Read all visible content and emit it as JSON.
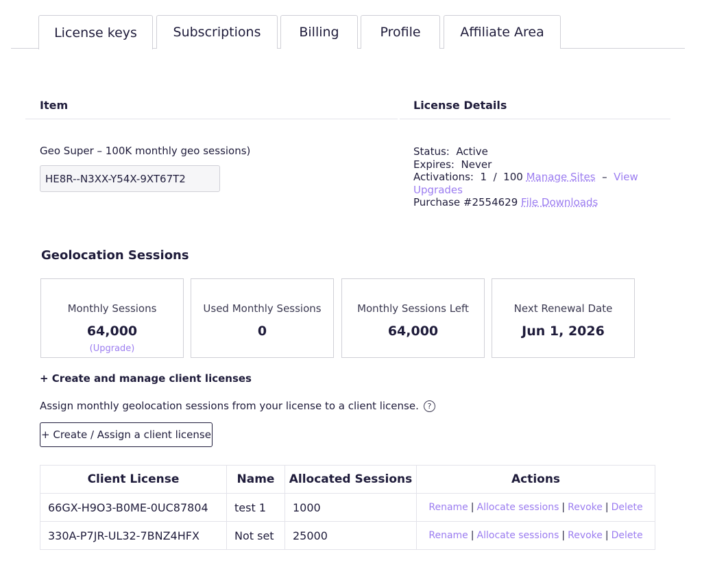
{
  "tabs": [
    "License keys",
    "Subscriptions",
    "Billing",
    "Profile",
    "Affiliate Area"
  ],
  "item": {
    "header": "Item",
    "product": "Geo Super – 100K monthly geo sessions)",
    "license_key": "HE8R--N3XX-Y54X-9XT67T2"
  },
  "details": {
    "header": "License Details",
    "status_label": "Status:",
    "status_value": "Active",
    "expires_label": "Expires:",
    "expires_value": "Never",
    "activations_label": "Activations:",
    "activations_value": "1  /  100",
    "manage_sites": "Manage Sites",
    "dash": "–",
    "view_upgrades": "View Upgrades",
    "purchase": "Purchase #2554629",
    "file_downloads": "File Downloads"
  },
  "sessions": {
    "title": "Geolocation Sessions",
    "cards": [
      {
        "label": "Monthly Sessions",
        "value": "64,000",
        "upgrade": "(Upgrade)"
      },
      {
        "label": "Used Monthly Sessions",
        "value": "0"
      },
      {
        "label": "Monthly Sessions Left",
        "value": "64,000"
      },
      {
        "label": "Next Renewal Date",
        "value": "Jun 1, 2026"
      }
    ]
  },
  "client": {
    "header": "+ Create and manage client licenses",
    "assign_text": "Assign monthly geolocation sessions from your license to a client license.",
    "help_icon": "?",
    "create_button": "+ Create / Assign a client license",
    "columns": [
      "Client License",
      "Name",
      "Allocated Sessions",
      "Actions"
    ],
    "rows": [
      {
        "license": "66GX-H9O3-B0ME-0UC87804",
        "name": "test 1",
        "allocated": "1000"
      },
      {
        "license": "330A-P7JR-UL32-7BNZ4HFX",
        "name": "Not set",
        "allocated": "25000"
      }
    ],
    "actions": {
      "rename": "Rename",
      "allocate": "Allocate sessions",
      "revoke": "Revoke",
      "delete": "Delete",
      "separator": "|"
    }
  },
  "colors": {
    "accent": "#9b7cf0",
    "text": "#1e1b3a",
    "border": "#cfcfd6"
  }
}
